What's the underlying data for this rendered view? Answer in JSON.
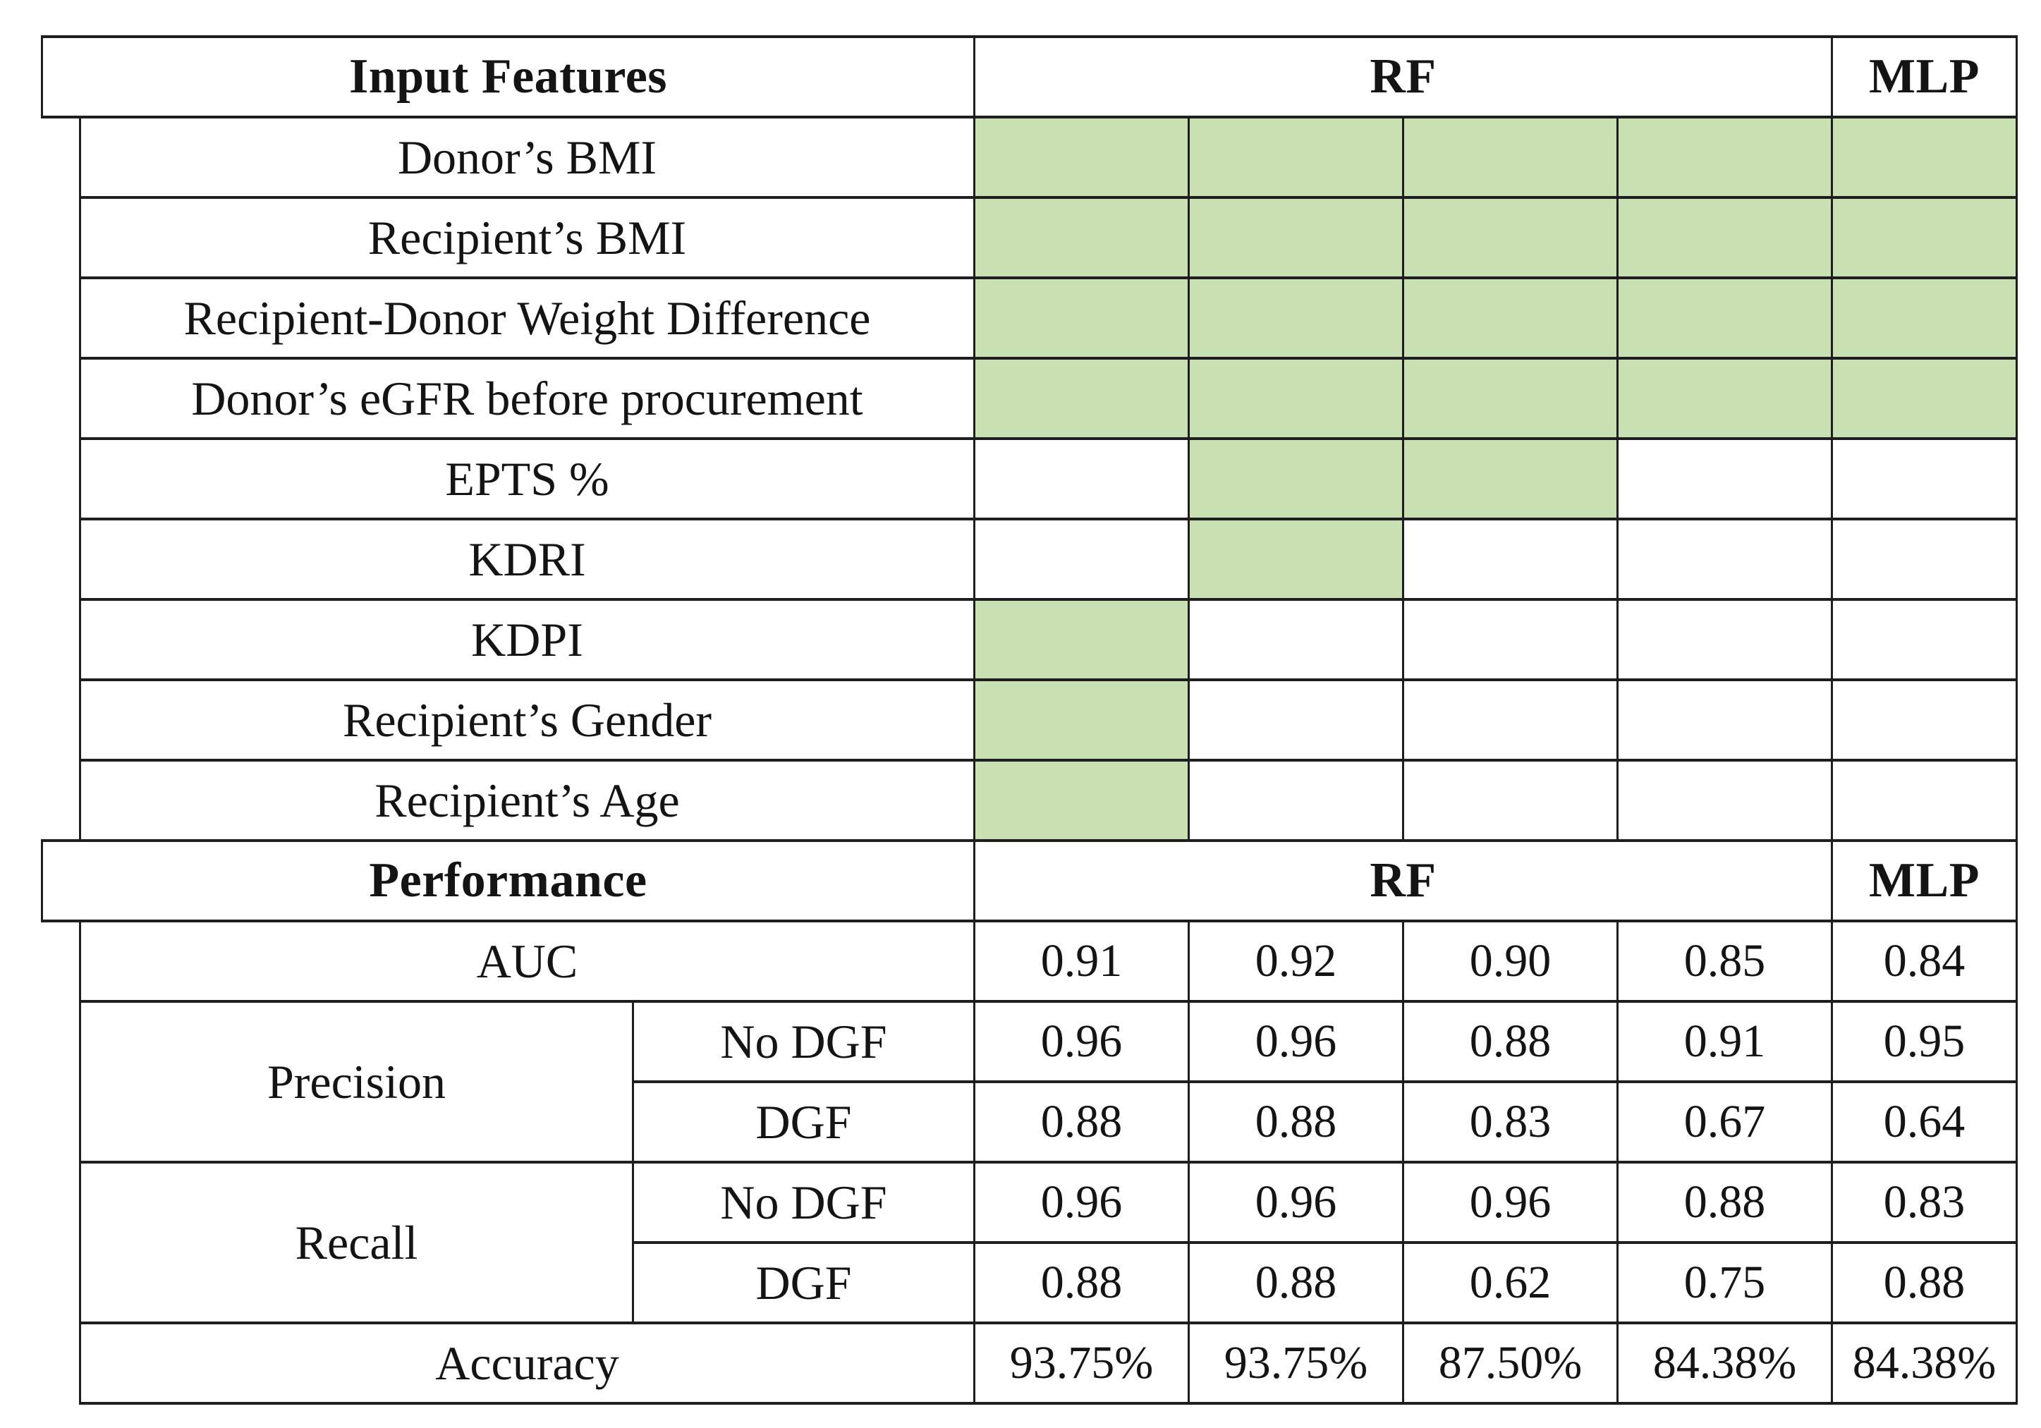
{
  "table": {
    "highlight_color": "#c9e0b2",
    "line_color": "#1e1e1e",
    "features": {
      "title": "Input Features",
      "model_rf": "RF",
      "model_mlp": "MLP",
      "rf_model_count": 4,
      "mlp_model_count": 1,
      "rows": [
        {
          "label": "Donor’s BMI",
          "selected": [
            true,
            true,
            true,
            true,
            true
          ]
        },
        {
          "label": "Recipient’s BMI",
          "selected": [
            true,
            true,
            true,
            true,
            true
          ]
        },
        {
          "label": "Recipient-Donor Weight Difference",
          "selected": [
            true,
            true,
            true,
            true,
            true
          ]
        },
        {
          "label": "Donor’s eGFR before procurement",
          "selected": [
            true,
            true,
            true,
            true,
            true
          ]
        },
        {
          "label": "EPTS %",
          "selected": [
            false,
            true,
            true,
            false,
            false
          ]
        },
        {
          "label": "KDRI",
          "selected": [
            false,
            true,
            false,
            false,
            false
          ]
        },
        {
          "label": "KDPI",
          "selected": [
            true,
            false,
            false,
            false,
            false
          ]
        },
        {
          "label": "Recipient’s Gender",
          "selected": [
            true,
            false,
            false,
            false,
            false
          ]
        },
        {
          "label": "Recipient’s Age",
          "selected": [
            true,
            false,
            false,
            false,
            false
          ]
        }
      ]
    },
    "performance": {
      "title": "Performance",
      "model_rf": "RF",
      "model_mlp": "MLP",
      "metrics": [
        {
          "label": "AUC",
          "values": [
            "0.91",
            "0.92",
            "0.90",
            "0.85",
            "0.84"
          ]
        },
        {
          "label": "Precision",
          "subrows": [
            {
              "label": "No DGF",
              "values": [
                "0.96",
                "0.96",
                "0.88",
                "0.91",
                "0.95"
              ]
            },
            {
              "label": "DGF",
              "values": [
                "0.88",
                "0.88",
                "0.83",
                "0.67",
                "0.64"
              ]
            }
          ]
        },
        {
          "label": "Recall",
          "subrows": [
            {
              "label": "No DGF",
              "values": [
                "0.96",
                "0.96",
                "0.96",
                "0.88",
                "0.83"
              ]
            },
            {
              "label": "DGF",
              "values": [
                "0.88",
                "0.88",
                "0.62",
                "0.75",
                "0.88"
              ]
            }
          ]
        },
        {
          "label": "Accuracy",
          "values": [
            "93.75%",
            "93.75%",
            "87.50%",
            "84.38%",
            "84.38%"
          ]
        }
      ]
    }
  }
}
